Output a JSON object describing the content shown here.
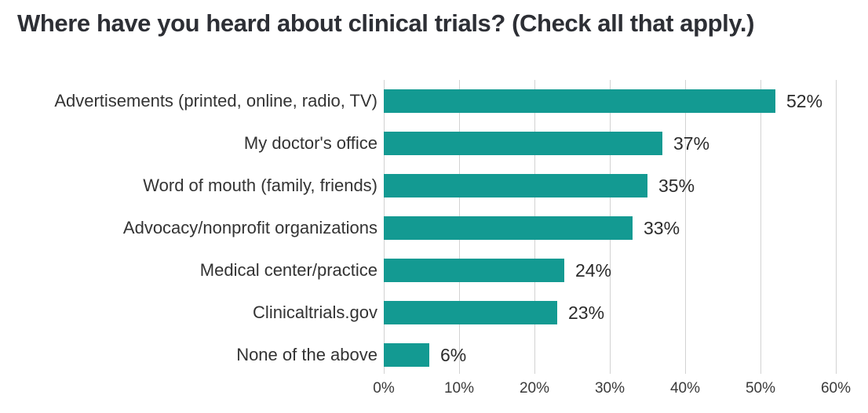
{
  "title": "Where have you heard about clinical trials? (Check all that apply.)",
  "colors": {
    "bar": "#139a92",
    "grid": "#d2d2d2",
    "title_text": "#2d2f35",
    "label_text": "#333333"
  },
  "chart_data": {
    "type": "bar",
    "orientation": "horizontal",
    "title": "Where have you heard about clinical trials? (Check all that apply.)",
    "categories": [
      "Advertisements (printed, online, radio, TV)",
      "My doctor's office",
      "Word of mouth (family, friends)",
      "Advocacy/nonprofit organizations",
      "Medical center/practice",
      "Clinicaltrials.gov",
      "None of the above"
    ],
    "values": [
      52,
      37,
      35,
      33,
      24,
      23,
      6
    ],
    "value_labels": [
      "52%",
      "37%",
      "35%",
      "33%",
      "24%",
      "23%",
      "6%"
    ],
    "xlabel": "",
    "ylabel": "",
    "xlim": [
      0,
      60
    ],
    "xticks": [
      0,
      10,
      20,
      30,
      40,
      50,
      60
    ],
    "xtick_labels": [
      "0%",
      "10%",
      "20%",
      "30%",
      "40%",
      "50%",
      "60%"
    ],
    "grid": true,
    "legend": false,
    "data_labels": true
  }
}
